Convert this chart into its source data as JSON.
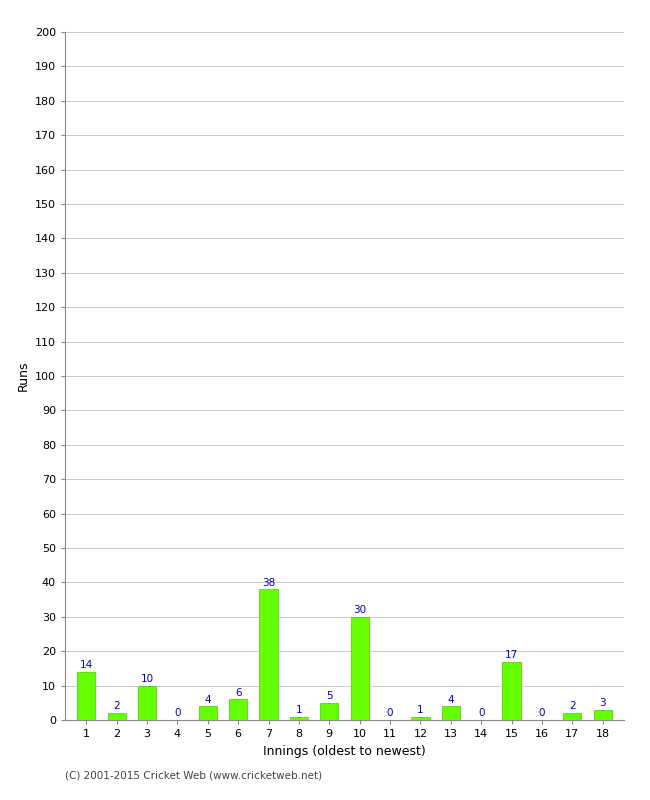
{
  "innings": [
    1,
    2,
    3,
    4,
    5,
    6,
    7,
    8,
    9,
    10,
    11,
    12,
    13,
    14,
    15,
    16,
    17,
    18
  ],
  "runs": [
    14,
    2,
    10,
    0,
    4,
    6,
    38,
    1,
    5,
    30,
    0,
    1,
    4,
    0,
    17,
    0,
    2,
    3
  ],
  "bar_color": "#66ff00",
  "bar_edge_color": "#44cc00",
  "label_color": "#0000cc",
  "xlabel": "Innings (oldest to newest)",
  "ylabel": "Runs",
  "ylim": [
    0,
    200
  ],
  "yticks": [
    0,
    10,
    20,
    30,
    40,
    50,
    60,
    70,
    80,
    90,
    100,
    110,
    120,
    130,
    140,
    150,
    160,
    170,
    180,
    190,
    200
  ],
  "footer": "(C) 2001-2015 Cricket Web (www.cricketweb.net)",
  "background_color": "#ffffff",
  "grid_color": "#cccccc"
}
